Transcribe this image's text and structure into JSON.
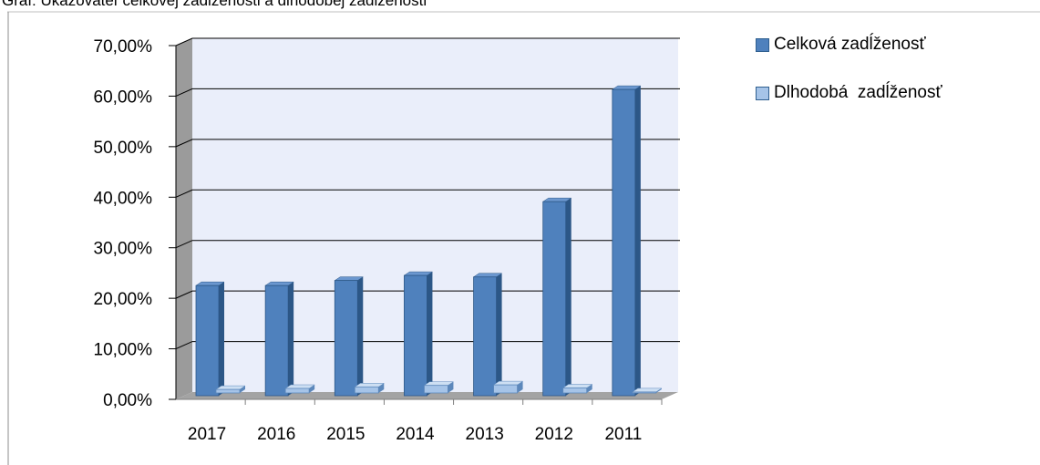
{
  "figure_caption": "Graf: Ukazovateľ celkovej zadĺženosti a dlhodobej zadĺženosti",
  "chart_data": {
    "type": "bar",
    "title": "",
    "xlabel": "",
    "ylabel": "",
    "categories": [
      "2017",
      "2016",
      "2015",
      "2014",
      "2013",
      "2012",
      "2011"
    ],
    "series": [
      {
        "name": "Celková zadĺženosť",
        "color": "#4f81bd",
        "values": [
          21.8,
          21.8,
          22.8,
          23.8,
          23.5,
          38.4,
          60.6
        ]
      },
      {
        "name": "Dlhodobá  zadĺženosť",
        "color": "#a6c4e8",
        "values": [
          0.7,
          0.9,
          1.2,
          1.5,
          1.6,
          1.0,
          0.2
        ]
      }
    ],
    "ylim": [
      0,
      70
    ],
    "yticks": [
      "0,00%",
      "10,00%",
      "20,00%",
      "30,00%",
      "40,00%",
      "50,00%",
      "60,00%",
      "70,00%"
    ],
    "grid": true,
    "legend_position": "right"
  }
}
